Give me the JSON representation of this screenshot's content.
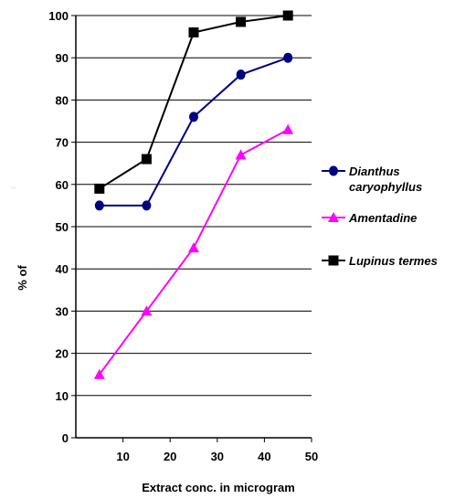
{
  "chart_data": {
    "type": "line",
    "title": "",
    "xlabel": "Extract conc. in microgram",
    "ylabel": "% of",
    "x_ticks": [
      "10",
      "20",
      "30",
      "40",
      "50"
    ],
    "y_ticks": [
      "0",
      "10",
      "20",
      "30",
      "40",
      "50",
      "60",
      "70",
      "80",
      "90",
      "100"
    ],
    "x": [
      5,
      15,
      25,
      35,
      45
    ],
    "xlim": [
      0,
      50
    ],
    "ylim": [
      0,
      100
    ],
    "grid": "horizontal",
    "legend_position": "right",
    "series": [
      {
        "name": "Dianthus caryophyllus",
        "name_lines": [
          "Dianthus",
          "caryophyllus"
        ],
        "values": [
          55,
          55,
          76,
          86,
          90
        ],
        "color": "#000080",
        "marker": "circle"
      },
      {
        "name": "Amentadine",
        "name_lines": [
          "Amentadine"
        ],
        "values": [
          15,
          30,
          45,
          67,
          73
        ],
        "color": "#FF00FF",
        "marker": "triangle"
      },
      {
        "name": "Lupinus termes",
        "name_lines": [
          "Lupinus termes"
        ],
        "values": [
          59,
          66,
          96,
          98.5,
          100
        ],
        "color": "#000000",
        "marker": "square"
      }
    ]
  }
}
